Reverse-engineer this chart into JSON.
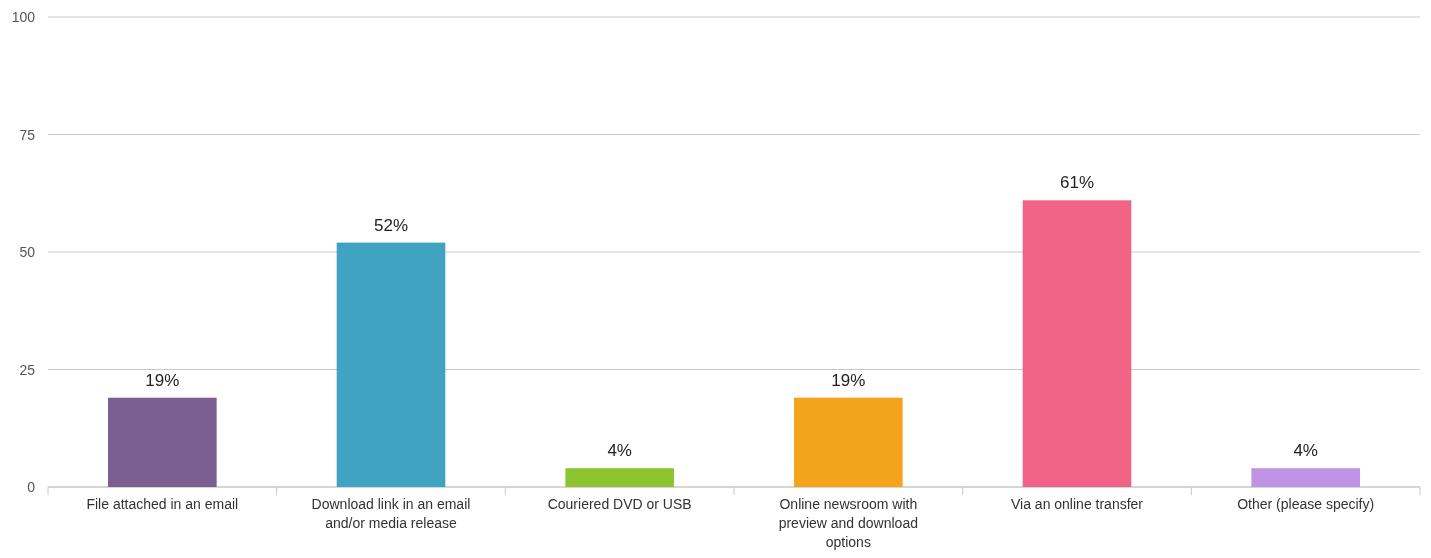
{
  "chart_data": {
    "type": "bar",
    "categories": [
      "File attached in an email",
      "Download link in an email and/or media release",
      "Couriered DVD or USB",
      "Online newsroom with preview and download options",
      "Via an online transfer",
      "Other (please specify)"
    ],
    "values": [
      19,
      52,
      4,
      19,
      61,
      4
    ],
    "colors": [
      "#7b5f93",
      "#3fa3c1",
      "#8dc530",
      "#f4a41c",
      "#f06587",
      "#bf94e4"
    ],
    "value_labels": [
      "19%",
      "52%",
      "4%",
      "19%",
      "61%",
      "4%"
    ],
    "ylim": [
      0,
      100
    ],
    "yticks": [
      0,
      25,
      50,
      75,
      100
    ],
    "grid": "y"
  }
}
